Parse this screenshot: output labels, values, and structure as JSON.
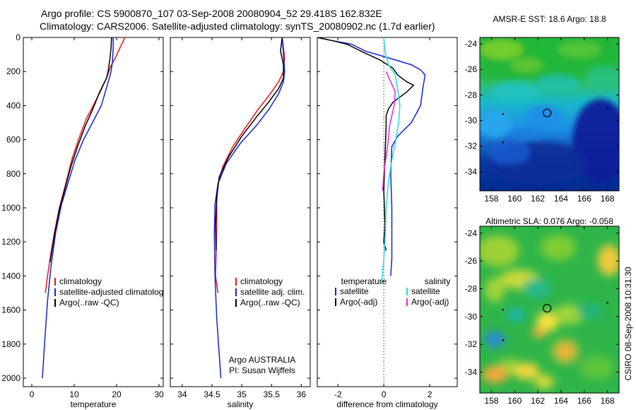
{
  "header": {
    "title_line1": "Argo profile: CS 5900870_107 03-Sep-2008 20080904_52 29.418S 162.832E",
    "title_line2": "Climatology: CARS2006. Satellite-adjusted climatology: synTS_20080902.nc (1.7d earlier)"
  },
  "footer": {
    "stamp": "CSIRO 08-Sep-2008 10:31:30"
  },
  "colors": {
    "climatology": "#ee1111",
    "satellite": "#1122dd",
    "argo": "#000000",
    "satellite_salinity": "#22dddd",
    "argo_adj_salinity": "#ee22ee"
  },
  "chart_data": [
    {
      "type": "line",
      "id": "temperature",
      "xlabel": "temperature",
      "xlim": [
        -2,
        31
      ],
      "xticks": [
        0,
        10,
        20,
        30
      ],
      "ylim": [
        2050,
        0
      ],
      "yticks": [
        0,
        200,
        400,
        600,
        800,
        1000,
        1200,
        1400,
        1600,
        1800,
        2000
      ],
      "legend_placement": "lower-right",
      "series": [
        {
          "name": "climatology",
          "color": "#ee1111",
          "points": [
            [
              21.9,
              0
            ],
            [
              21.6,
              20
            ],
            [
              20.8,
              60
            ],
            [
              19.7,
              120
            ],
            [
              18.6,
              170
            ],
            [
              17.6,
              240
            ],
            [
              16.3,
              310
            ],
            [
              14.5,
              400
            ],
            [
              12.8,
              480
            ],
            [
              11.0,
              600
            ],
            [
              9.4,
              720
            ],
            [
              8.0,
              860
            ],
            [
              6.5,
              1000
            ],
            [
              5.3,
              1150
            ],
            [
              4.3,
              1300
            ],
            [
              3.6,
              1420
            ],
            [
              3.2,
              1500
            ]
          ]
        },
        {
          "name": "satellite-adjusted climatology",
          "color": "#1122dd",
          "points": [
            [
              19.2,
              0
            ],
            [
              19.2,
              60
            ],
            [
              19.0,
              150
            ],
            [
              18.6,
              210
            ],
            [
              17.8,
              280
            ],
            [
              16.4,
              400
            ],
            [
              14.3,
              500
            ],
            [
              12.2,
              600
            ],
            [
              10.2,
              720
            ],
            [
              8.6,
              850
            ],
            [
              7.0,
              980
            ],
            [
              5.6,
              1150
            ],
            [
              4.5,
              1350
            ],
            [
              3.7,
              1550
            ],
            [
              3.0,
              1800
            ],
            [
              2.5,
              2000
            ]
          ]
        },
        {
          "name": "Argo(..raw -QC)",
          "color": "#000000",
          "points": [
            [
              18.8,
              0
            ],
            [
              18.7,
              60
            ],
            [
              18.4,
              130
            ],
            [
              18.0,
              200
            ],
            [
              17.6,
              240
            ],
            [
              16.0,
              320
            ],
            [
              14.4,
              420
            ],
            [
              12.6,
              520
            ],
            [
              10.8,
              640
            ],
            [
              9.2,
              760
            ],
            [
              7.8,
              890
            ],
            [
              6.4,
              1020
            ],
            [
              5.2,
              1180
            ],
            [
              4.3,
              1320
            ]
          ]
        }
      ]
    },
    {
      "type": "line",
      "id": "salinity",
      "xlabel": "salinity",
      "xlim": [
        33.8,
        36.15
      ],
      "xticks": [
        34,
        34.5,
        35,
        35.5,
        36
      ],
      "ylim": [
        2050,
        0
      ],
      "legend_placement": "lower-right",
      "annotation": [
        "Argo AUSTRALIA",
        "PI: Susan Wijffels"
      ],
      "series": [
        {
          "name": "climatology",
          "color": "#ee1111",
          "points": [
            [
              35.68,
              0
            ],
            [
              35.7,
              60
            ],
            [
              35.72,
              120
            ],
            [
              35.7,
              200
            ],
            [
              35.62,
              260
            ],
            [
              35.46,
              340
            ],
            [
              35.28,
              420
            ],
            [
              35.08,
              520
            ],
            [
              34.85,
              640
            ],
            [
              34.68,
              760
            ],
            [
              34.6,
              860
            ],
            [
              34.58,
              960
            ],
            [
              34.58,
              1100
            ],
            [
              34.57,
              1250
            ],
            [
              34.56,
              1400
            ],
            [
              34.6,
              1500
            ]
          ]
        },
        {
          "name": "satellite adj. clim.",
          "color": "#1122dd",
          "points": [
            [
              35.68,
              0
            ],
            [
              35.7,
              100
            ],
            [
              35.72,
              200
            ],
            [
              35.7,
              260
            ],
            [
              35.62,
              330
            ],
            [
              35.46,
              420
            ],
            [
              35.24,
              520
            ],
            [
              34.98,
              620
            ],
            [
              34.74,
              740
            ],
            [
              34.6,
              860
            ],
            [
              34.55,
              980
            ],
            [
              34.54,
              1150
            ],
            [
              34.55,
              1400
            ],
            [
              34.58,
              1650
            ],
            [
              34.62,
              1850
            ],
            [
              34.65,
              2000
            ]
          ]
        },
        {
          "name": "Argo(..raw -QC)",
          "color": "#000000",
          "points": [
            [
              35.68,
              0
            ],
            [
              35.65,
              80
            ],
            [
              35.7,
              160
            ],
            [
              35.7,
              240
            ],
            [
              35.62,
              300
            ],
            [
              35.45,
              380
            ],
            [
              35.24,
              470
            ],
            [
              35.0,
              580
            ],
            [
              34.78,
              700
            ],
            [
              34.62,
              820
            ],
            [
              34.58,
              940
            ],
            [
              34.56,
              1100
            ],
            [
              34.57,
              1250
            ]
          ]
        }
      ]
    },
    {
      "type": "line",
      "id": "difference",
      "xlabel": "difference from climatology",
      "xlim": [
        -2.9,
        3.2
      ],
      "xticks": [
        -2,
        0,
        2
      ],
      "ylim": [
        2050,
        0
      ],
      "zero_line": "dotted",
      "legend_placement": "lower-right",
      "legend_headers": [
        "temperature",
        "salinity"
      ],
      "series": [
        {
          "name": "satellite",
          "group": "temperature",
          "color": "#1122dd",
          "points": [
            [
              -2.9,
              0
            ],
            [
              -2.2,
              20
            ],
            [
              -1.4,
              40
            ],
            [
              -0.8,
              80
            ],
            [
              0.2,
              120
            ],
            [
              1.2,
              160
            ],
            [
              1.6,
              190
            ],
            [
              1.8,
              220
            ],
            [
              1.7,
              300
            ],
            [
              1.6,
              400
            ],
            [
              1.2,
              500
            ],
            [
              0.6,
              580
            ],
            [
              0.35,
              640
            ],
            [
              0.3,
              800
            ],
            [
              0.35,
              1000
            ],
            [
              0.35,
              1300
            ],
            [
              0.3,
              1400
            ]
          ]
        },
        {
          "name": "Argo(-adj)",
          "group": "temperature",
          "color": "#000000",
          "points": [
            [
              -2.9,
              0
            ],
            [
              -2.2,
              20
            ],
            [
              -1.6,
              40
            ],
            [
              -1.0,
              80
            ],
            [
              -0.2,
              130
            ],
            [
              0.4,
              180
            ],
            [
              0.6,
              220
            ],
            [
              1.0,
              260
            ],
            [
              1.3,
              280
            ],
            [
              1.0,
              320
            ],
            [
              0.7,
              350
            ],
            [
              0.4,
              380
            ],
            [
              0.2,
              420
            ],
            [
              0.1,
              460
            ],
            [
              0.1,
              520
            ],
            [
              0.05,
              700
            ],
            [
              0.0,
              900
            ],
            [
              0.05,
              1100
            ],
            [
              0.0,
              1200
            ],
            [
              0.1,
              1250
            ]
          ]
        },
        {
          "name": "satellite",
          "group": "salinity",
          "color": "#22dddd",
          "points": [
            [
              0.0,
              0
            ],
            [
              0.05,
              80
            ],
            [
              0.2,
              160
            ],
            [
              0.5,
              220
            ],
            [
              0.6,
              300
            ],
            [
              0.7,
              400
            ],
            [
              0.65,
              500
            ],
            [
              0.5,
              620
            ],
            [
              0.35,
              720
            ],
            [
              0.2,
              850
            ],
            [
              0.1,
              1000
            ],
            [
              0.05,
              1200
            ],
            [
              0.0,
              1300
            ],
            [
              -0.1,
              1450
            ]
          ]
        },
        {
          "name": "Argo(-adj)",
          "group": "salinity",
          "color": "#ee22ee",
          "points": [
            [
              0.1,
              200
            ],
            [
              0.3,
              260
            ],
            [
              0.5,
              320
            ],
            [
              0.45,
              400
            ],
            [
              0.35,
              460
            ],
            [
              0.25,
              520
            ],
            [
              0.2,
              600
            ],
            [
              0.1,
              700
            ],
            [
              0.0,
              800
            ],
            [
              -0.05,
              900
            ]
          ]
        }
      ]
    },
    {
      "type": "heatmap",
      "id": "sst-map",
      "title": "AMSR-E SST: 18.6 Argo: 18.8",
      "xlim": [
        157,
        169
      ],
      "xticks": [
        158,
        160,
        162,
        164,
        166,
        168
      ],
      "ylim": [
        -35.5,
        -23.5
      ],
      "yticks": [
        -24,
        -26,
        -28,
        -30,
        -32,
        -34
      ],
      "argo_position": [
        162.8,
        -29.4
      ]
    },
    {
      "type": "heatmap",
      "id": "sla-map",
      "title": "Altimetric SLA: 0.076 Argo: -0.058",
      "xlim": [
        157,
        169
      ],
      "xticks": [
        158,
        160,
        162,
        164,
        166,
        168
      ],
      "ylim": [
        -35.5,
        -23.5
      ],
      "yticks": [
        -24,
        -26,
        -28,
        -30,
        -32,
        -34
      ],
      "argo_position": [
        162.8,
        -29.4
      ]
    }
  ]
}
